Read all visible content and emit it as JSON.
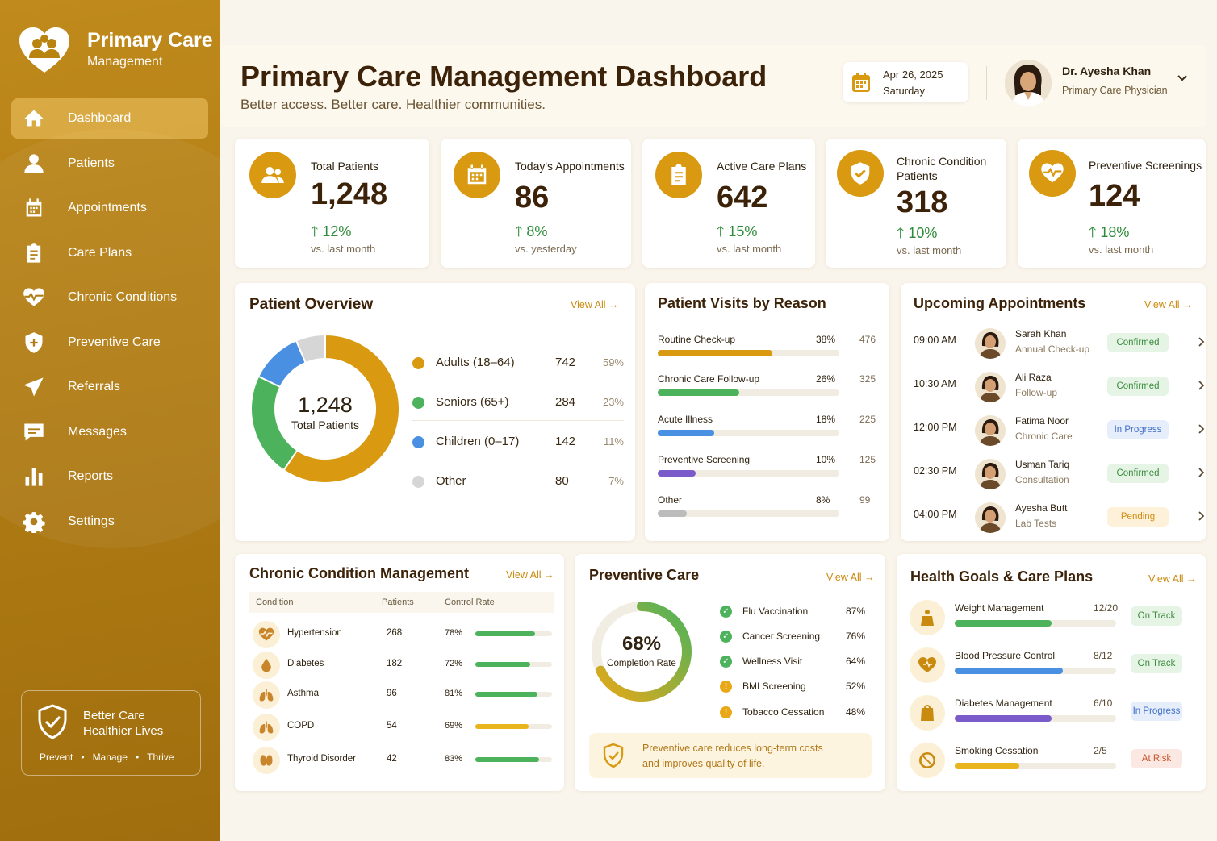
{
  "brand": {
    "title": "Primary Care",
    "subtitle": "Management"
  },
  "nav": [
    {
      "label": "Dashboard",
      "icon": "home-icon",
      "active": true
    },
    {
      "label": "Patients",
      "icon": "user-icon"
    },
    {
      "label": "Appointments",
      "icon": "calendar-icon"
    },
    {
      "label": "Care Plans",
      "icon": "clipboard-icon"
    },
    {
      "label": "Chronic Conditions",
      "icon": "heartbeat-icon"
    },
    {
      "label": "Preventive Care",
      "icon": "shield-icon"
    },
    {
      "label": "Referrals",
      "icon": "send-icon"
    },
    {
      "label": "Messages",
      "icon": "message-icon"
    },
    {
      "label": "Reports",
      "icon": "bar-chart-icon"
    },
    {
      "label": "Settings",
      "icon": "gear-icon"
    }
  ],
  "promo": {
    "line1": "Better Care",
    "line2": "Healthier Lives",
    "tags": [
      "Prevent",
      "•",
      "Manage",
      "•",
      "Thrive"
    ]
  },
  "header": {
    "title": "Primary Care Management Dashboard",
    "subtitle": "Better access. Better care. Healthier communities.",
    "date": "Apr 26, 2025",
    "day": "Saturday",
    "user_name": "Dr. Ayesha Khan",
    "user_role": "Primary Care Physician"
  },
  "stats": [
    {
      "label": "Total Patients",
      "value": "1,248",
      "change": "12%",
      "compare": "vs. last month",
      "icon": "users-icon"
    },
    {
      "label": "Today's Appointments",
      "value": "86",
      "change": "8%",
      "compare": "vs. yesterday",
      "icon": "calendar-icon"
    },
    {
      "label": "Active Care Plans",
      "value": "642",
      "change": "15%",
      "compare": "vs. last month",
      "icon": "clipboard-icon"
    },
    {
      "label": "Chronic Condition Patients",
      "value": "318",
      "change": "10%",
      "compare": "vs. last month",
      "icon": "shield-check-icon"
    },
    {
      "label": "Preventive Screenings",
      "value": "124",
      "change": "18%",
      "compare": "vs. last month",
      "icon": "heartbeat-icon"
    }
  ],
  "patient_overview": {
    "title": "Patient Overview",
    "view_all": "View All",
    "center_value": "1,248",
    "center_label": "Total Patients",
    "groups": [
      {
        "label": "Adults (18–64)",
        "value": "742",
        "pct": "59%",
        "color": "#d99a12"
      },
      {
        "label": "Seniors (65+)",
        "value": "284",
        "pct": "23%",
        "color": "#4cb35c"
      },
      {
        "label": "Children (0–17)",
        "value": "142",
        "pct": "11%",
        "color": "#4a90e2"
      },
      {
        "label": "Other",
        "value": "80",
        "pct": "7%",
        "color": "#d6d6d6"
      }
    ]
  },
  "chart_data": {
    "type": "pie",
    "categories": [
      "Adults (18–64)",
      "Seniors (65+)",
      "Children (0–17)",
      "Other"
    ],
    "values": [
      742,
      284,
      142,
      80
    ],
    "title": "Patient Overview"
  },
  "visits": {
    "title": "Patient Visits by Reason",
    "rows": [
      {
        "label": "Routine Check-up",
        "pct": "38%",
        "count": "476",
        "fraction": 0.63,
        "color": "#d99a12"
      },
      {
        "label": "Chronic Care Follow-up",
        "pct": "26%",
        "count": "325",
        "fraction": 0.45,
        "color": "#4cb35c"
      },
      {
        "label": "Acute Illness",
        "pct": "18%",
        "count": "225",
        "fraction": 0.31,
        "color": "#4a90e2"
      },
      {
        "label": "Preventive Screening",
        "pct": "10%",
        "count": "125",
        "fraction": 0.21,
        "color": "#7b5bc9"
      },
      {
        "label": "Other",
        "pct": "8%",
        "count": "99",
        "fraction": 0.16,
        "color": "#bcbcbc"
      }
    ]
  },
  "appointments": {
    "title": "Upcoming Appointments",
    "view_all": "View All",
    "rows": [
      {
        "time": "09:00 AM",
        "name": "Sarah Khan",
        "type": "Annual Check-up",
        "status": "Confirmed",
        "kind": "green"
      },
      {
        "time": "10:30 AM",
        "name": "Ali Raza",
        "type": "Follow-up",
        "status": "Confirmed",
        "kind": "green"
      },
      {
        "time": "12:00 PM",
        "name": "Fatima Noor",
        "type": "Chronic Care",
        "status": "In Progress",
        "kind": "blue"
      },
      {
        "time": "02:30 PM",
        "name": "Usman Tariq",
        "type": "Consultation",
        "status": "Confirmed",
        "kind": "green"
      },
      {
        "time": "04:00 PM",
        "name": "Ayesha Butt",
        "type": "Lab Tests",
        "status": "Pending",
        "kind": "amber"
      }
    ]
  },
  "chronic": {
    "title": "Chronic Condition Management",
    "view_all": "View All",
    "headers": [
      "Condition",
      "Patients",
      "Control Rate"
    ],
    "rows": [
      {
        "name": "Hypertension",
        "patients": "268",
        "rate": "78%",
        "fraction": 0.78,
        "color": "#4cb35c",
        "icon": "heart-pulse-icon"
      },
      {
        "name": "Diabetes",
        "patients": "182",
        "rate": "72%",
        "fraction": 0.72,
        "color": "#4cb35c",
        "icon": "drop-icon"
      },
      {
        "name": "Asthma",
        "patients": "96",
        "rate": "81%",
        "fraction": 0.81,
        "color": "#4cb35c",
        "icon": "lungs-icon"
      },
      {
        "name": "COPD",
        "patients": "54",
        "rate": "69%",
        "fraction": 0.69,
        "color": "#e8b51c",
        "icon": "lungs-icon"
      },
      {
        "name": "Thyroid Disorder",
        "patients": "42",
        "rate": "83%",
        "fraction": 0.83,
        "color": "#4cb35c",
        "icon": "thyroid-icon"
      }
    ]
  },
  "preventive": {
    "title": "Preventive Care",
    "view_all": "View All",
    "completion": "68%",
    "completion_label": "Completion Rate",
    "completion_fraction": 0.68,
    "items": [
      {
        "label": "Flu Vaccination",
        "pct": "87%",
        "state": "done"
      },
      {
        "label": "Cancer Screening",
        "pct": "76%",
        "state": "done"
      },
      {
        "label": "Wellness Visit",
        "pct": "64%",
        "state": "done"
      },
      {
        "label": "BMI Screening",
        "pct": "52%",
        "state": "warn"
      },
      {
        "label": "Tobacco Cessation",
        "pct": "48%",
        "state": "warn"
      }
    ],
    "note_line1": "Preventive care reduces long-term costs",
    "note_line2": "and improves quality of life."
  },
  "goals": {
    "title": "Health Goals & Care Plans",
    "view_all": "View All",
    "rows": [
      {
        "name": "Weight Management",
        "frac": "12/20",
        "fraction": 0.6,
        "color": "#4cb35c",
        "status": "On Track",
        "kind": "green",
        "icon": "scale-icon"
      },
      {
        "name": "Blood Pressure Control",
        "frac": "8/12",
        "fraction": 0.67,
        "color": "#4a90e2",
        "status": "On Track",
        "kind": "green",
        "icon": "heart-icon"
      },
      {
        "name": "Diabetes Management",
        "frac": "6/10",
        "fraction": 0.6,
        "color": "#7b5bc9",
        "status": "In Progress",
        "kind": "blue",
        "icon": "bag-icon"
      },
      {
        "name": "Smoking Cessation",
        "frac": "2/5",
        "fraction": 0.4,
        "color": "#e8b51c",
        "status": "At Risk",
        "kind": "red",
        "icon": "no-smoking-icon"
      }
    ]
  }
}
